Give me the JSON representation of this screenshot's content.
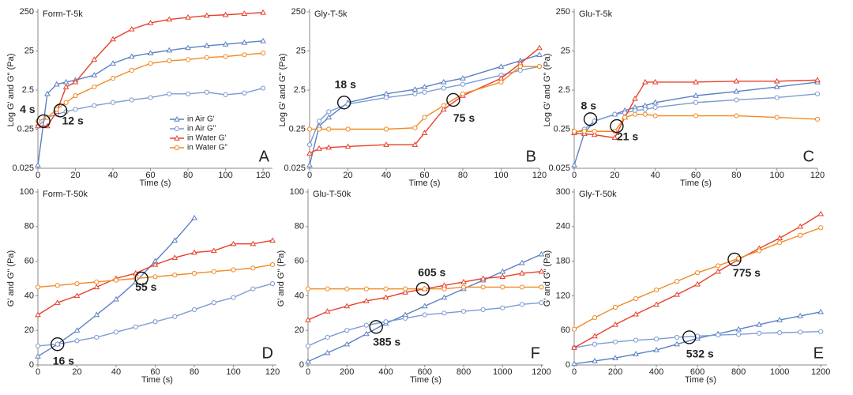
{
  "chart_data": [
    {
      "type": "line",
      "title": "Form-T-5k",
      "panel_label": "A",
      "xlabel": "Time (s)",
      "ylabel": "Log G' and G\" (Pa)",
      "log_y": true,
      "x": [
        0,
        5,
        10,
        15,
        20,
        30,
        40,
        50,
        60,
        70,
        80,
        90,
        100,
        110,
        120
      ],
      "xlim": [
        0,
        125
      ],
      "xticks": [
        0,
        20,
        40,
        60,
        80,
        100,
        120
      ],
      "ylim": [
        0.025,
        250
      ],
      "yticks": [
        0.025,
        0.25,
        2.5,
        25,
        250
      ],
      "legend": "lower right",
      "series": [
        {
          "name": "in Air G'",
          "color": "#5b80c4",
          "marker": "triangle",
          "values": [
            0.03,
            2,
            3.5,
            4,
            4.5,
            6,
            12,
            18,
            22,
            26,
            30,
            34,
            37,
            41,
            45
          ]
        },
        {
          "name": "in Air G\"",
          "color": "#7b9bd4",
          "marker": "circle",
          "values": [
            0.3,
            0.5,
            0.6,
            0.7,
            0.8,
            1,
            1.2,
            1.4,
            1.6,
            2,
            2,
            2.2,
            1.9,
            2.1,
            2.8
          ]
        },
        {
          "name": "in Water G'",
          "color": "#e8402a",
          "marker": "triangle",
          "values": [
            0.3,
            0.3,
            0.7,
            3,
            4,
            15,
            50,
            90,
            130,
            160,
            180,
            200,
            210,
            225,
            240
          ]
        },
        {
          "name": "in Water G\"",
          "color": "#f08a24",
          "marker": "circle",
          "values": [
            0.4,
            0.5,
            0.8,
            1.2,
            1.8,
            3,
            5,
            8,
            12,
            14,
            15,
            17,
            18,
            20,
            22
          ]
        }
      ],
      "annotations": [
        {
          "label": "4 s",
          "x": 3,
          "y": 0.4
        },
        {
          "label": "12 s",
          "x": 12,
          "y": 0.75
        }
      ]
    },
    {
      "type": "line",
      "title": "Gly-T-5k",
      "panel_label": "B",
      "xlabel": "Time (s)",
      "ylabel": "Log G' and G\" (Pa)",
      "log_y": true,
      "x": [
        0,
        5,
        10,
        20,
        40,
        55,
        60,
        70,
        80,
        100,
        110,
        120
      ],
      "xlim": [
        0,
        120
      ],
      "xticks": [
        0,
        20,
        40,
        60,
        80,
        100,
        120
      ],
      "ylim": [
        0.025,
        250
      ],
      "yticks": [
        0.025,
        0.25,
        2.5,
        25,
        250
      ],
      "series": [
        {
          "color": "#5b80c4",
          "marker": "triangle",
          "values": [
            0.03,
            0.3,
            0.5,
            1.2,
            2,
            2.6,
            3,
            4,
            5,
            10,
            14,
            20
          ]
        },
        {
          "color": "#7b9bd4",
          "marker": "circle",
          "values": [
            0.1,
            0.4,
            0.7,
            1.1,
            1.6,
            2,
            2.2,
            2.8,
            3.5,
            6,
            8,
            10
          ]
        },
        {
          "color": "#e8402a",
          "marker": "triangle",
          "values": [
            0.06,
            0.08,
            0.085,
            0.09,
            0.1,
            0.1,
            0.2,
            0.8,
            1.8,
            5,
            12,
            30
          ]
        },
        {
          "color": "#f08a24",
          "marker": "circle",
          "values": [
            0.25,
            0.25,
            0.25,
            0.25,
            0.25,
            0.27,
            0.5,
            1,
            2,
            4,
            10,
            10
          ]
        }
      ],
      "annotations": [
        {
          "label": "18 s",
          "x": 18,
          "y": 1.2
        },
        {
          "label": "75 s",
          "x": 75,
          "y": 1.4
        }
      ]
    },
    {
      "type": "line",
      "title": "Glu-T-5k",
      "panel_label": "C",
      "xlabel": "Time (s)",
      "ylabel": "Log G' and G\" (Pa)",
      "log_y": true,
      "x": [
        0,
        5,
        10,
        20,
        25,
        30,
        35,
        40,
        60,
        80,
        100,
        120
      ],
      "xlim": [
        0,
        120
      ],
      "xticks": [
        0,
        20,
        40,
        60,
        80,
        100,
        120
      ],
      "ylim": [
        0.025,
        250
      ],
      "yticks": [
        0.025,
        0.25,
        2.5,
        25,
        250
      ],
      "series": [
        {
          "color": "#5b80c4",
          "marker": "triangle",
          "values": [
            0.03,
            0.2,
            0.4,
            0.6,
            0.75,
            0.9,
            1,
            1.2,
            1.8,
            2.3,
            3,
            4
          ]
        },
        {
          "color": "#7b9bd4",
          "marker": "circle",
          "values": [
            0.2,
            0.25,
            0.4,
            0.6,
            0.65,
            0.75,
            0.8,
            0.9,
            1.2,
            1.4,
            1.6,
            2
          ]
        },
        {
          "color": "#e8402a",
          "marker": "triangle",
          "values": [
            0.2,
            0.19,
            0.18,
            0.15,
            0.5,
            1.5,
            4,
            4,
            4,
            4.2,
            4.2,
            4.5
          ]
        },
        {
          "color": "#f08a24",
          "marker": "circle",
          "values": [
            0.22,
            0.22,
            0.22,
            0.22,
            0.5,
            0.6,
            0.6,
            0.55,
            0.55,
            0.55,
            0.5,
            0.45
          ]
        }
      ],
      "annotations": [
        {
          "label": "8 s",
          "x": 8,
          "y": 0.45
        },
        {
          "label": "21 s",
          "x": 21,
          "y": 0.3
        }
      ]
    },
    {
      "type": "line",
      "title": "Form-T-50k",
      "panel_label": "D",
      "xlabel": "Time (s)",
      "ylabel": "G' and G\" (Pa)",
      "log_y": false,
      "x": [
        0,
        10,
        20,
        30,
        40,
        50,
        60,
        70,
        80,
        90,
        100,
        110,
        120
      ],
      "xlim": [
        0,
        122
      ],
      "xticks": [
        0,
        20,
        40,
        60,
        80,
        100,
        120
      ],
      "ylim": [
        0,
        100
      ],
      "yticks": [
        0,
        20,
        40,
        60,
        80,
        100
      ],
      "series": [
        {
          "color": "#5b80c4",
          "marker": "triangle",
          "values": [
            5,
            12,
            20,
            29,
            38,
            48,
            60,
            72,
            85,
            null,
            null,
            null,
            null
          ]
        },
        {
          "color": "#7b9bd4",
          "marker": "circle",
          "values": [
            11,
            12,
            14,
            16,
            19,
            22,
            25,
            28,
            32,
            36,
            39,
            44,
            47
          ]
        },
        {
          "color": "#e8402a",
          "marker": "triangle",
          "values": [
            29,
            36,
            40,
            45,
            50,
            53,
            58,
            62,
            65,
            66,
            70,
            70,
            72
          ]
        },
        {
          "color": "#f08a24",
          "marker": "circle",
          "values": [
            45,
            46,
            47,
            48,
            49,
            50,
            51,
            52,
            53,
            54,
            55,
            56,
            58
          ]
        }
      ],
      "annotations": [
        {
          "label": "16 s",
          "x": 10,
          "y": 12
        },
        {
          "label": "55 s",
          "x": 53,
          "y": 50
        }
      ]
    },
    {
      "type": "line",
      "title": "Glu-T-50k",
      "panel_label": "F",
      "xlabel": "Time (s)",
      "ylabel": "G' and G\" (Pa)",
      "log_y": false,
      "x": [
        0,
        100,
        200,
        300,
        400,
        500,
        600,
        700,
        800,
        900,
        1000,
        1100,
        1200
      ],
      "xlim": [
        0,
        1210
      ],
      "xticks": [
        0,
        200,
        400,
        600,
        800,
        1000,
        1200
      ],
      "ylim": [
        0,
        100
      ],
      "yticks": [
        0,
        20,
        40,
        60,
        80,
        100
      ],
      "series": [
        {
          "color": "#5b80c4",
          "marker": "triangle",
          "values": [
            2,
            7,
            12,
            18,
            24,
            29,
            34,
            39,
            44,
            49,
            54,
            59,
            64
          ]
        },
        {
          "color": "#7b9bd4",
          "marker": "circle",
          "values": [
            11,
            16,
            20,
            23,
            25,
            27,
            29,
            30,
            31,
            32,
            33,
            35,
            36
          ]
        },
        {
          "color": "#e8402a",
          "marker": "triangle",
          "values": [
            26,
            31,
            34,
            37,
            39,
            42,
            44,
            46,
            48,
            50,
            51,
            53,
            54
          ]
        },
        {
          "color": "#f08a24",
          "marker": "circle",
          "values": [
            44,
            44,
            44,
            44,
            44,
            44,
            44,
            44,
            45,
            45,
            45,
            45,
            45
          ]
        }
      ],
      "annotations": [
        {
          "label": "385 s",
          "x": 350,
          "y": 22
        },
        {
          "label": "605 s",
          "x": 590,
          "y": 44
        }
      ]
    },
    {
      "type": "line",
      "title": "Gly-T-50k",
      "panel_label": "E",
      "xlabel": "Time (s)",
      "ylabel": "G' and G\" (Pa)",
      "log_y": false,
      "x": [
        0,
        100,
        200,
        300,
        400,
        500,
        600,
        700,
        800,
        900,
        1000,
        1100,
        1200
      ],
      "xlim": [
        0,
        1230
      ],
      "xticks": [
        0,
        200,
        400,
        600,
        800,
        1000,
        1200
      ],
      "ylim": [
        0,
        300
      ],
      "yticks": [
        0,
        60,
        120,
        180,
        240,
        300
      ],
      "series": [
        {
          "color": "#5b80c4",
          "marker": "triangle",
          "values": [
            2,
            7,
            12,
            19,
            26,
            36,
            46,
            54,
            62,
            70,
            78,
            85,
            92
          ]
        },
        {
          "color": "#7b9bd4",
          "marker": "circle",
          "values": [
            30,
            36,
            40,
            43,
            45,
            48,
            50,
            52,
            53,
            55,
            56,
            57,
            58
          ]
        },
        {
          "color": "#e8402a",
          "marker": "triangle",
          "values": [
            30,
            50,
            70,
            88,
            105,
            122,
            140,
            162,
            183,
            202,
            220,
            240,
            262
          ]
        },
        {
          "color": "#f08a24",
          "marker": "circle",
          "values": [
            62,
            82,
            100,
            115,
            130,
            145,
            160,
            172,
            185,
            198,
            212,
            225,
            238
          ]
        }
      ],
      "annotations": [
        {
          "label": "532 s",
          "x": 560,
          "y": 48
        },
        {
          "label": "775 s",
          "x": 780,
          "y": 183
        }
      ]
    }
  ]
}
